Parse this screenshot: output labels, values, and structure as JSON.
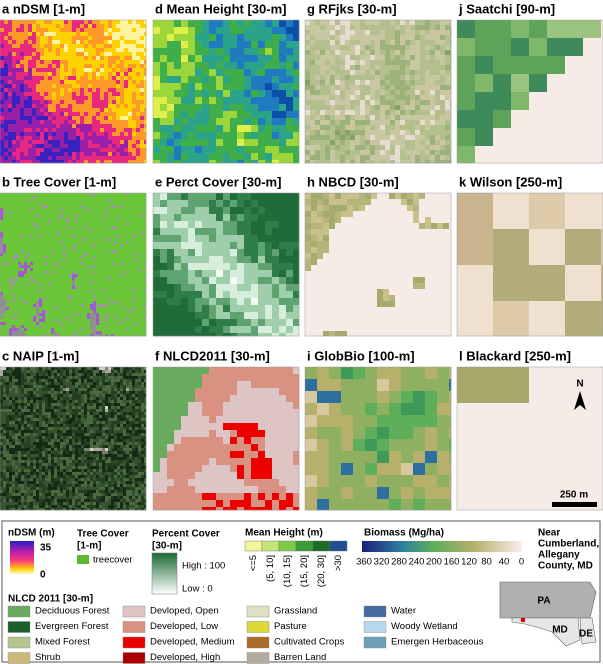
{
  "panels": [
    {
      "title": "a nDSM [1-m]"
    },
    {
      "title": "d Mean Height [30-m]"
    },
    {
      "title": "g RFjks [30-m]"
    },
    {
      "title": "j Saatchi [90-m]"
    },
    {
      "title": "b Tree Cover [1-m]"
    },
    {
      "title": "e Perct Cover [30-m]"
    },
    {
      "title": "h NBCD [30-m]"
    },
    {
      "title": "k Wilson [250-m]"
    },
    {
      "title": "c NAIP [1-m]"
    },
    {
      "title": "f NLCD2011 [30-m]"
    },
    {
      "title": "i GlobBio [100-m]"
    },
    {
      "title": "l Blackard [250-m]"
    }
  ],
  "north": "N",
  "scale_bar": "250 m",
  "legend": {
    "ndsm": {
      "title": "nDSM (m)",
      "high": "35",
      "low": "0"
    },
    "tree_cover": {
      "title": [
        "Tree Cover",
        "[1-m]"
      ],
      "item": "treecover",
      "color": "#5cb82c"
    },
    "percent_cover": {
      "title": [
        "Percent Cover",
        "[30-m]"
      ],
      "high": "High : 100",
      "low": "Low : 0"
    },
    "mean_height": {
      "title": "Mean Height (m)",
      "classes": [
        {
          "label": "<=5",
          "color": "#f3f59a"
        },
        {
          "label": "(5, 10]",
          "color": "#c6e67a"
        },
        {
          "label": "(10, 15]",
          "color": "#7dcc48"
        },
        {
          "label": "(15, 20]",
          "color": "#3c9c3a"
        },
        {
          "label": "(20, 30]",
          "color": "#1f6b2a"
        },
        {
          "label": ">30",
          "color": "#1f4f8f"
        }
      ]
    },
    "biomass": {
      "title": "Biomass (Mg/ha)",
      "ticks": [
        "360",
        "320",
        "280",
        "240",
        "200",
        "160",
        "120",
        "80",
        "40",
        "0"
      ]
    },
    "location": [
      "Near",
      "Cumberland,",
      "Allegany",
      "County, MD"
    ],
    "nlcd": {
      "title": "NLCD 2011 [30-m]",
      "items": [
        {
          "label": "Deciduous Forest",
          "color": "#68ab5f"
        },
        {
          "label": "Evergreen Forest",
          "color": "#1c5f2c"
        },
        {
          "label": "Mixed Forest",
          "color": "#b5c58f"
        },
        {
          "label": "Shrub",
          "color": "#ccb879"
        },
        {
          "label": "Devloped, Open",
          "color": "#dec5c5"
        },
        {
          "label": "Developed, Low",
          "color": "#d99282"
        },
        {
          "label": "Developed, Medium",
          "color": "#eb0000"
        },
        {
          "label": "Developed, High",
          "color": "#ab0000"
        },
        {
          "label": "Grassland",
          "color": "#dfdfc2"
        },
        {
          "label": "Pasture",
          "color": "#dcd939"
        },
        {
          "label": "Cultivated Crops",
          "color": "#ab6c28"
        },
        {
          "label": "Barren Land",
          "color": "#b3ac9f"
        },
        {
          "label": "Water",
          "color": "#466b9f"
        },
        {
          "label": "Woody Wetland",
          "color": "#b8d9eb"
        },
        {
          "label": "Emergen Herbaceous",
          "color": "#6c9fb8"
        }
      ]
    },
    "states": {
      "pa": "PA",
      "md": "MD",
      "de": "DE"
    }
  }
}
